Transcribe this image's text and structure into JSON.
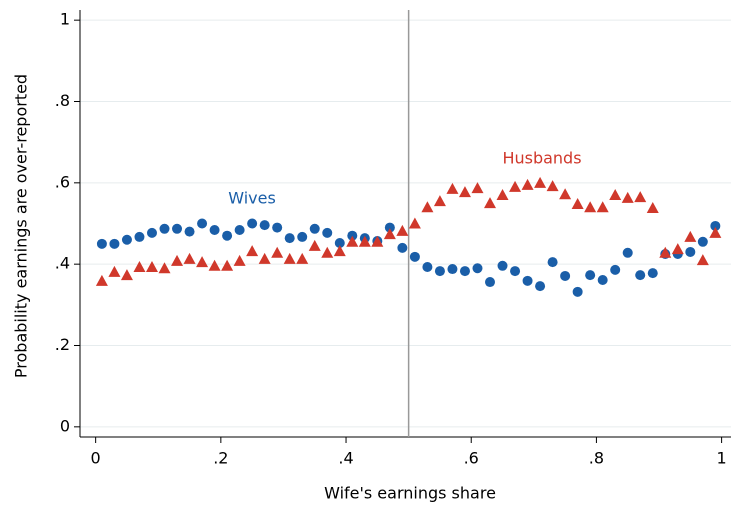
{
  "chart_data": {
    "type": "scatter",
    "xlabel": "Wife's earnings share",
    "ylabel": "Probability earnings are over-reported",
    "x": [
      0.01,
      0.03,
      0.05,
      0.07,
      0.09,
      0.11,
      0.13,
      0.15,
      0.17,
      0.19,
      0.21,
      0.23,
      0.25,
      0.27,
      0.29,
      0.31,
      0.33,
      0.35,
      0.37,
      0.39,
      0.41,
      0.43,
      0.45,
      0.47,
      0.49,
      0.51,
      0.53,
      0.55,
      0.57,
      0.59,
      0.61,
      0.63,
      0.65,
      0.67,
      0.69,
      0.71,
      0.73,
      0.75,
      0.77,
      0.79,
      0.81,
      0.83,
      0.85,
      0.87,
      0.89,
      0.91,
      0.93,
      0.95,
      0.97,
      0.99
    ],
    "series": [
      {
        "name": "Wives",
        "color": "#1a5ea8",
        "marker": "circle",
        "values": [
          0.45,
          0.45,
          0.46,
          0.467,
          0.477,
          0.487,
          0.487,
          0.48,
          0.5,
          0.484,
          0.47,
          0.484,
          0.5,
          0.496,
          0.49,
          0.464,
          0.467,
          0.487,
          0.477,
          0.452,
          0.47,
          0.464,
          0.457,
          0.49,
          0.44,
          0.418,
          0.393,
          0.383,
          0.388,
          0.383,
          0.39,
          0.356,
          0.396,
          0.383,
          0.359,
          0.346,
          0.405,
          0.371,
          0.332,
          0.373,
          0.361,
          0.386,
          0.428,
          0.373,
          0.378,
          0.425,
          0.425,
          0.43,
          0.455,
          0.494
        ]
      },
      {
        "name": "Husbands",
        "color": "#d0382b",
        "marker": "triangle",
        "values": [
          0.359,
          0.381,
          0.373,
          0.393,
          0.393,
          0.39,
          0.408,
          0.413,
          0.405,
          0.396,
          0.396,
          0.408,
          0.432,
          0.413,
          0.428,
          0.413,
          0.413,
          0.445,
          0.428,
          0.432,
          0.455,
          0.455,
          0.455,
          0.474,
          0.482,
          0.5,
          0.54,
          0.555,
          0.585,
          0.577,
          0.587,
          0.55,
          0.57,
          0.59,
          0.595,
          0.6,
          0.592,
          0.572,
          0.548,
          0.54,
          0.54,
          0.57,
          0.563,
          0.565,
          0.538,
          0.428,
          0.437,
          0.467,
          0.41,
          0.477
        ]
      }
    ],
    "xlim": [
      -0.025,
      1.015
    ],
    "ylim": [
      -0.025,
      1.025
    ],
    "xticks": [
      0,
      {
        "value": 0.2,
        "label": ".2"
      },
      {
        "value": 0.4,
        "label": ".4"
      },
      {
        "value": 0.6,
        "label": ".6"
      },
      {
        "value": 0.8,
        "label": ".8"
      },
      1
    ],
    "yticks": [
      0,
      {
        "value": 0.2,
        "label": ".2"
      },
      {
        "value": 0.4,
        "label": ".4"
      },
      {
        "value": 0.6,
        "label": ".6"
      },
      {
        "value": 0.8,
        "label": ".8"
      },
      1
    ],
    "vline": 0.5,
    "grid": true
  }
}
